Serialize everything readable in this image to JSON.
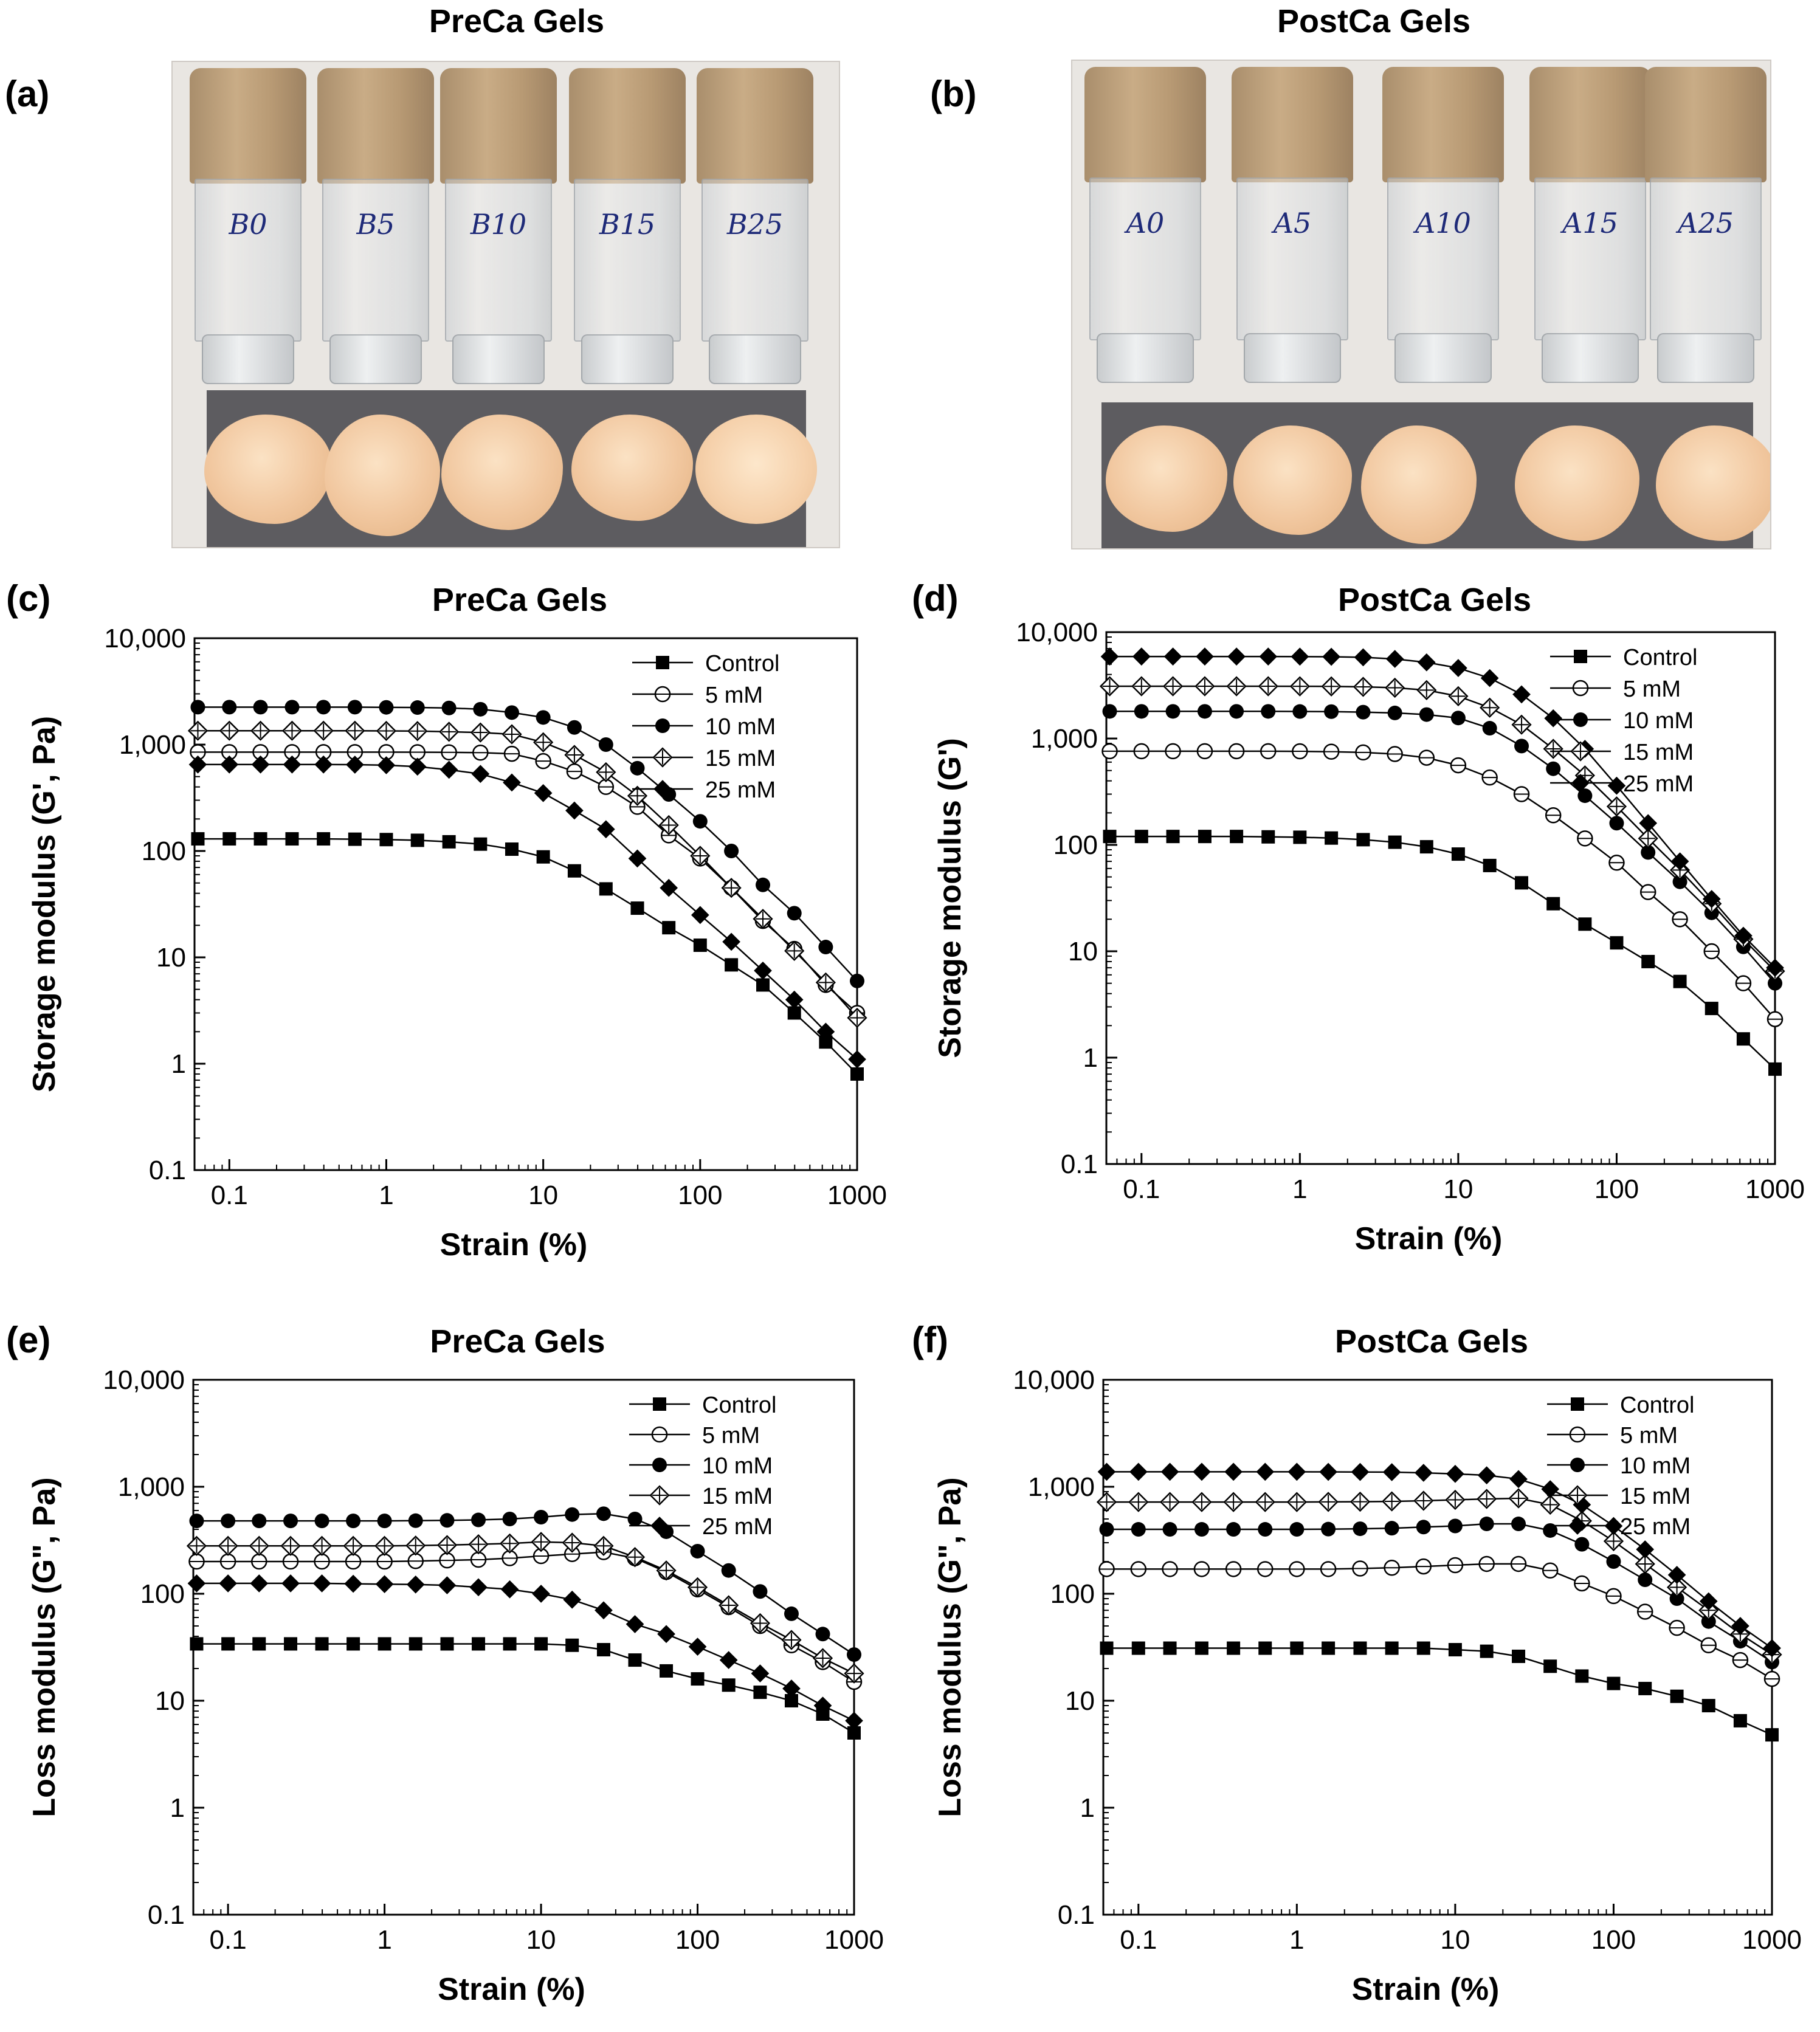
{
  "photos": [
    {
      "label": "(a)",
      "title": "PreCa Gels",
      "vial_labels": [
        "B0",
        "B5",
        "B10",
        "B15",
        "B25"
      ],
      "colors": {
        "cap": "#b89a74",
        "gel": "#f3cba3",
        "mat": "#5d5c60"
      }
    },
    {
      "label": "(b)",
      "title": "PostCa Gels",
      "vial_labels": [
        "A0",
        "A5",
        "A10",
        "A15",
        "A25"
      ],
      "colors": {
        "cap": "#b89a74",
        "gel": "#f3cba3",
        "mat": "#5d5c60"
      }
    }
  ],
  "chart_data": [
    {
      "label": "(c)",
      "type": "line",
      "title": "PreCa Gels",
      "xlabel": "Strain (%)",
      "ylabel": "Storage modulus (G', Pa)",
      "xscale": "log",
      "yscale": "log",
      "xlim": [
        0.06,
        1000
      ],
      "ylim": [
        0.1,
        10000
      ],
      "xticks": [
        "0.1",
        "1",
        "10",
        "100",
        "1000"
      ],
      "yticks": [
        "0.1",
        "1",
        "10",
        "100",
        "1,000",
        "10,000"
      ],
      "legend": "top-right",
      "x": [
        0.063,
        0.1,
        0.158,
        0.251,
        0.398,
        0.631,
        1.0,
        1.58,
        2.51,
        3.98,
        6.31,
        10.0,
        15.8,
        25.1,
        39.8,
        63.1,
        100,
        158,
        251,
        398,
        631,
        1000
      ],
      "series": [
        {
          "name": "Control",
          "marker": "square",
          "values": [
            130,
            130,
            130,
            130,
            130,
            129,
            128,
            126,
            122,
            116,
            104,
            88,
            65,
            44,
            29,
            19,
            13,
            8.5,
            5.5,
            3.0,
            1.6,
            0.8
          ]
        },
        {
          "name": "5 mM",
          "marker": "circle-open",
          "values": [
            850,
            850,
            850,
            850,
            850,
            850,
            850,
            848,
            845,
            840,
            820,
            700,
            560,
            400,
            260,
            140,
            85,
            45,
            22,
            12,
            5.5,
            3.0
          ]
        },
        {
          "name": "10 mM",
          "marker": "circle",
          "values": [
            2250,
            2250,
            2250,
            2250,
            2250,
            2250,
            2240,
            2230,
            2210,
            2150,
            2000,
            1800,
            1450,
            1000,
            600,
            340,
            190,
            100,
            48,
            26,
            12.5,
            6.0
          ]
        },
        {
          "name": "15 mM",
          "marker": "diamond-open",
          "values": [
            1350,
            1350,
            1350,
            1350,
            1350,
            1350,
            1345,
            1340,
            1320,
            1300,
            1250,
            1050,
            800,
            550,
            330,
            175,
            90,
            45,
            23,
            11.5,
            5.8,
            2.7
          ]
        },
        {
          "name": "25 mM",
          "marker": "diamond",
          "values": [
            650,
            650,
            650,
            650,
            650,
            648,
            640,
            620,
            580,
            530,
            440,
            350,
            240,
            160,
            85,
            45,
            25,
            14,
            7.5,
            4.0,
            2.0,
            1.1
          ]
        }
      ]
    },
    {
      "label": "(d)",
      "type": "line",
      "title": "PostCa Gels",
      "xlabel": "Strain (%)",
      "ylabel": "Storage modulus (G')",
      "xscale": "log",
      "yscale": "log",
      "xlim": [
        0.06,
        1000
      ],
      "ylim": [
        0.1,
        10000
      ],
      "xticks": [
        "0.1",
        "1",
        "10",
        "100",
        "1000"
      ],
      "yticks": [
        "0.1",
        "1",
        "10",
        "100",
        "1,000",
        "10,000"
      ],
      "legend": "top-right",
      "x": [
        0.063,
        0.1,
        0.158,
        0.251,
        0.398,
        0.631,
        1.0,
        1.58,
        2.51,
        3.98,
        6.31,
        10.0,
        15.8,
        25.1,
        39.8,
        63.1,
        100,
        158,
        251,
        398,
        631,
        1000
      ],
      "series": [
        {
          "name": "Control",
          "marker": "square",
          "values": [
            120,
            120,
            120,
            120,
            120,
            119,
            118,
            116,
            112,
            106,
            96,
            82,
            64,
            44,
            28,
            18,
            12,
            8.0,
            5.2,
            2.9,
            1.5,
            0.78
          ]
        },
        {
          "name": "5 mM",
          "marker": "circle-open",
          "values": [
            760,
            760,
            760,
            760,
            760,
            760,
            758,
            752,
            740,
            715,
            660,
            560,
            430,
            300,
            190,
            115,
            68,
            36,
            20,
            10,
            5.0,
            2.3
          ]
        },
        {
          "name": "10 mM",
          "marker": "circle",
          "values": [
            1800,
            1800,
            1800,
            1800,
            1800,
            1800,
            1795,
            1790,
            1770,
            1740,
            1680,
            1560,
            1250,
            850,
            520,
            290,
            160,
            85,
            45,
            23,
            11,
            5.0
          ]
        },
        {
          "name": "15 mM",
          "marker": "diamond-open",
          "values": [
            3100,
            3100,
            3100,
            3100,
            3100,
            3100,
            3095,
            3090,
            3060,
            3000,
            2850,
            2500,
            1950,
            1350,
            800,
            450,
            230,
            115,
            58,
            28,
            13,
            6.5
          ]
        },
        {
          "name": "25 mM",
          "marker": "diamond",
          "values": [
            5900,
            5900,
            5900,
            5900,
            5900,
            5900,
            5890,
            5870,
            5800,
            5600,
            5200,
            4600,
            3700,
            2600,
            1550,
            800,
            360,
            160,
            70,
            31,
            14,
            7.0
          ]
        }
      ]
    },
    {
      "label": "(e)",
      "type": "line",
      "title": "PreCa Gels",
      "xlabel": "Strain (%)",
      "ylabel": "Loss modulus (G\", Pa)",
      "xscale": "log",
      "yscale": "log",
      "xlim": [
        0.06,
        1000
      ],
      "ylim": [
        0.1,
        10000
      ],
      "xticks": [
        "0.1",
        "1",
        "10",
        "100",
        "1000"
      ],
      "yticks": [
        "0.1",
        "1",
        "10",
        "100",
        "1,000",
        "10,000"
      ],
      "legend": "top-right",
      "x": [
        0.063,
        0.1,
        0.158,
        0.251,
        0.398,
        0.631,
        1.0,
        1.58,
        2.51,
        3.98,
        6.31,
        10.0,
        15.8,
        25.1,
        39.8,
        63.1,
        100,
        158,
        251,
        398,
        631,
        1000
      ],
      "series": [
        {
          "name": "Control",
          "marker": "square",
          "values": [
            34,
            34,
            34,
            34,
            34,
            34,
            34,
            34,
            34,
            34,
            34,
            34,
            33,
            30,
            24,
            19,
            16,
            14,
            12,
            10,
            7.5,
            5.0
          ]
        },
        {
          "name": "5 mM",
          "marker": "circle-open",
          "values": [
            200,
            200,
            200,
            200,
            200,
            200,
            200,
            202,
            205,
            208,
            215,
            225,
            235,
            245,
            215,
            160,
            110,
            75,
            50,
            33,
            23,
            15
          ]
        },
        {
          "name": "10 mM",
          "marker": "circle",
          "values": [
            480,
            480,
            480,
            480,
            480,
            480,
            480,
            482,
            485,
            490,
            500,
            520,
            550,
            560,
            500,
            380,
            250,
            165,
            105,
            65,
            42,
            27
          ]
        },
        {
          "name": "15 mM",
          "marker": "diamond-open",
          "values": [
            280,
            280,
            280,
            280,
            280,
            280,
            280,
            282,
            285,
            290,
            295,
            305,
            300,
            280,
            220,
            165,
            115,
            78,
            53,
            37,
            25,
            18
          ]
        },
        {
          "name": "25 mM",
          "marker": "diamond",
          "values": [
            125,
            125,
            125,
            125,
            125,
            124,
            123,
            122,
            120,
            115,
            110,
            100,
            88,
            70,
            52,
            42,
            32,
            24,
            18,
            13,
            9.0,
            6.5
          ]
        }
      ]
    },
    {
      "label": "(f)",
      "type": "line",
      "title": "PostCa Gels",
      "xlabel": "Strain (%)",
      "ylabel": "Loss modulus (G\", Pa)",
      "xscale": "log",
      "yscale": "log",
      "xlim": [
        0.06,
        1000
      ],
      "ylim": [
        0.1,
        10000
      ],
      "xticks": [
        "0.1",
        "1",
        "10",
        "100",
        "1000"
      ],
      "yticks": [
        "0.1",
        "1",
        "10",
        "100",
        "1,000",
        "10,000"
      ],
      "legend": "top-right",
      "x": [
        0.063,
        0.1,
        0.158,
        0.251,
        0.398,
        0.631,
        1.0,
        1.58,
        2.51,
        3.98,
        6.31,
        10.0,
        15.8,
        25.1,
        39.8,
        63.1,
        100,
        158,
        251,
        398,
        631,
        1000
      ],
      "series": [
        {
          "name": "Control",
          "marker": "square",
          "values": [
            31,
            31,
            31,
            31,
            31,
            31,
            31,
            31,
            31,
            31,
            31,
            30,
            29,
            26,
            21,
            17,
            14.5,
            13,
            11,
            9.0,
            6.5,
            4.8
          ]
        },
        {
          "name": "5 mM",
          "marker": "circle-open",
          "values": [
            170,
            170,
            170,
            170,
            170,
            170,
            170,
            170,
            172,
            175,
            180,
            185,
            190,
            190,
            165,
            125,
            95,
            68,
            48,
            33,
            24,
            16
          ]
        },
        {
          "name": "10 mM",
          "marker": "circle",
          "values": [
            400,
            400,
            400,
            400,
            400,
            400,
            400,
            402,
            405,
            410,
            420,
            430,
            450,
            450,
            390,
            290,
            200,
            135,
            90,
            55,
            36,
            23
          ]
        },
        {
          "name": "15 mM",
          "marker": "diamond-open",
          "values": [
            720,
            720,
            720,
            720,
            720,
            720,
            720,
            722,
            725,
            730,
            740,
            755,
            770,
            780,
            680,
            480,
            310,
            190,
            115,
            70,
            42,
            27
          ]
        },
        {
          "name": "25 mM",
          "marker": "diamond",
          "values": [
            1380,
            1380,
            1380,
            1380,
            1380,
            1380,
            1380,
            1378,
            1375,
            1370,
            1350,
            1320,
            1280,
            1180,
            950,
            680,
            430,
            260,
            150,
            85,
            50,
            31
          ]
        }
      ]
    }
  ]
}
